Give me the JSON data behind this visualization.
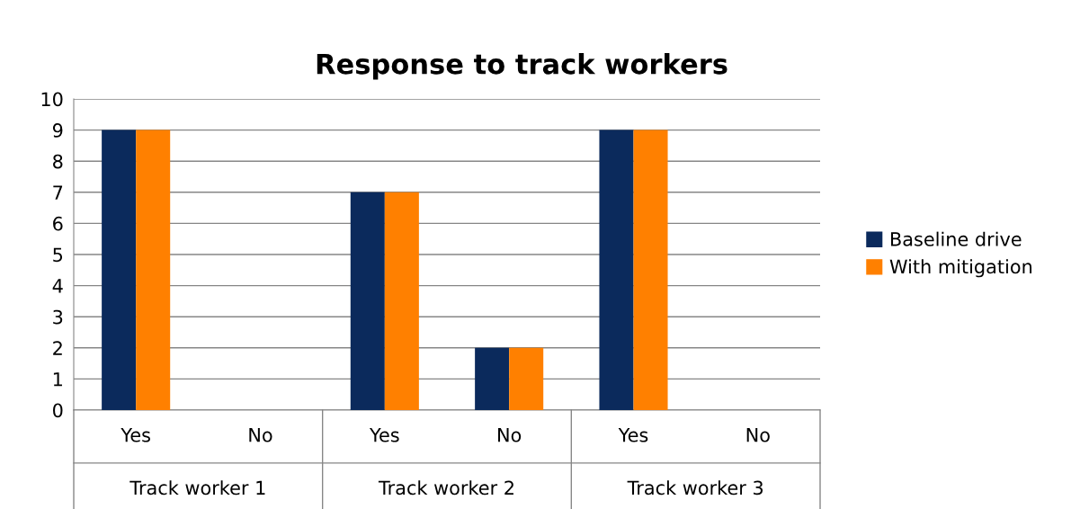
{
  "chart_data": {
    "type": "bar",
    "title": "Response to track workers",
    "categories": [
      "Yes",
      "No",
      "Yes",
      "No",
      "Yes",
      "No"
    ],
    "series": [
      {
        "name": "Baseline drive",
        "color": "#0b2a5c",
        "values": [
          9,
          0,
          7,
          2,
          9,
          0
        ]
      },
      {
        "name": "With mitigation",
        "color": "#ff8000",
        "values": [
          9,
          0,
          7,
          2,
          9,
          0
        ]
      }
    ],
    "ylim": [
      0,
      10
    ],
    "yticks": [
      0,
      1,
      2,
      3,
      4,
      5,
      6,
      7,
      8,
      9,
      10
    ],
    "grid": "y",
    "legend": "right",
    "annotations": [
      "Track worker 1",
      "Track worker 2",
      "Track worker 3"
    ]
  }
}
